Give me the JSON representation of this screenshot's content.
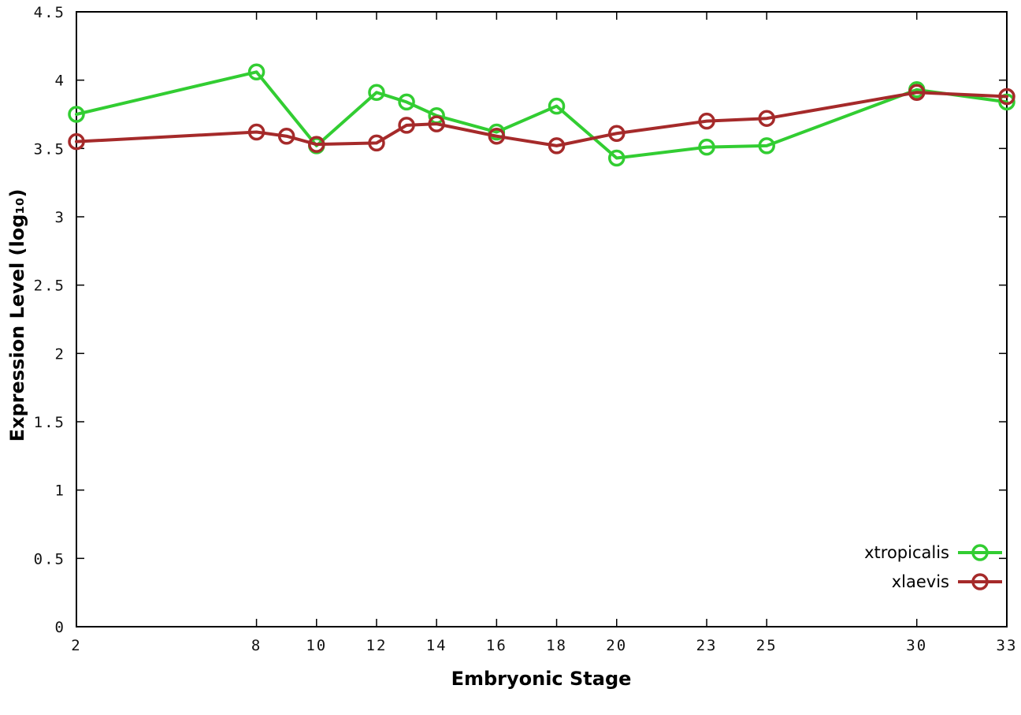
{
  "chart_data": {
    "type": "line",
    "title": "",
    "xlabel": "Embryonic Stage",
    "ylabel": "Expression Level (log₁₀)",
    "xlim": [
      2,
      33
    ],
    "ylim": [
      0,
      4.5
    ],
    "grid": false,
    "legend_position": "bottom-right",
    "xticks": [
      2,
      8,
      10,
      12,
      14,
      16,
      18,
      20,
      23,
      25,
      30,
      33
    ],
    "xtick_labels": [
      "2",
      "8",
      "10",
      "12",
      "14",
      "16",
      "18",
      "20",
      "23",
      "25",
      "30",
      "33"
    ],
    "yticks": [
      0,
      0.5,
      1,
      1.5,
      2,
      2.5,
      3,
      3.5,
      4,
      4.5
    ],
    "ytick_labels": [
      "0",
      "0.5",
      "1",
      "1.5",
      "2",
      "2.5",
      "3",
      "3.5",
      "4",
      "4.5"
    ],
    "series": [
      {
        "name": "xtropicalis",
        "color": "#32cd32",
        "marker": "open-circle",
        "x": [
          2,
          8,
          10,
          12,
          13,
          14,
          16,
          18,
          20,
          23,
          25,
          30,
          33
        ],
        "y": [
          3.75,
          4.06,
          3.52,
          3.91,
          3.84,
          3.74,
          3.62,
          3.81,
          3.43,
          3.51,
          3.52,
          3.93,
          3.84
        ]
      },
      {
        "name": "xlaevis",
        "color": "#a52a2a",
        "marker": "open-circle",
        "x": [
          2,
          8,
          9,
          10,
          12,
          13,
          14,
          16,
          18,
          20,
          23,
          25,
          30,
          33
        ],
        "y": [
          3.55,
          3.62,
          3.59,
          3.53,
          3.54,
          3.67,
          3.68,
          3.59,
          3.52,
          3.61,
          3.7,
          3.72,
          3.91,
          3.88
        ]
      }
    ]
  }
}
